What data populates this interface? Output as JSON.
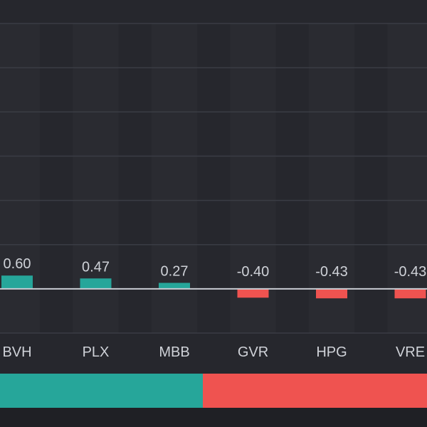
{
  "chart_data": {
    "type": "bar",
    "categories": [
      "BVH",
      "PLX",
      "MBB",
      "GVR",
      "HPG",
      "VRE"
    ],
    "values": [
      0.6,
      0.47,
      0.27,
      -0.4,
      -0.43,
      -0.43
    ],
    "value_labels": [
      "0.60",
      "0.47",
      "0.27",
      "-0.40",
      "-0.43",
      "-0.43"
    ],
    "ylim": [
      -2.0,
      12.0
    ],
    "grid": true,
    "colors": {
      "positive": "#26a69a",
      "negative": "#ef5350",
      "zero_line": "#c9ccd3",
      "grid": "#3a3c44",
      "label": "#cfd2d8",
      "background": "#26272d"
    }
  },
  "ratio_bar": {
    "up_fraction": 0.475,
    "down_fraction": 0.525,
    "up_color": "#26a69a",
    "down_color": "#ef5350"
  }
}
